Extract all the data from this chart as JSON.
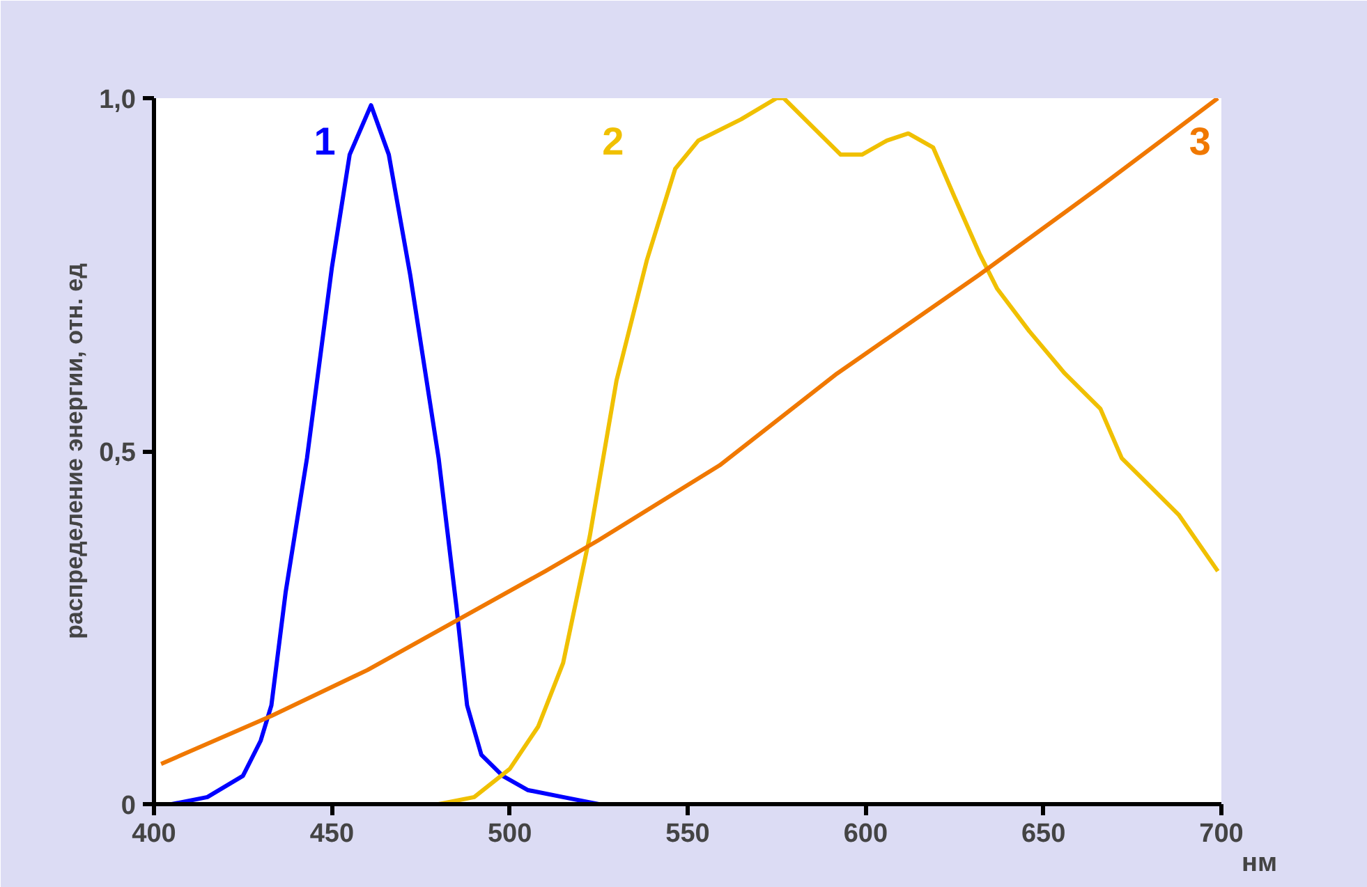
{
  "chart_data": {
    "type": "line",
    "ylabel": "распределение энергии, отн. ед",
    "xlabel": "нм",
    "xlim": [
      400,
      700
    ],
    "ylim": [
      0,
      1
    ],
    "xticks": [
      400,
      450,
      500,
      550,
      600,
      650,
      700
    ],
    "yticks": [
      {
        "value": 0,
        "label": "0"
      },
      {
        "value": 0.5,
        "label": "0,5"
      },
      {
        "value": 1,
        "label": "1,0"
      }
    ],
    "grid": false,
    "series": [
      {
        "color": "#0000ff",
        "x": [
          405,
          415,
          425,
          430,
          433,
          437,
          443,
          450,
          455,
          461,
          466,
          472,
          480,
          485,
          488,
          492,
          498,
          505,
          515,
          525
        ],
        "values": [
          0,
          0.01,
          0.04,
          0.09,
          0.14,
          0.3,
          0.49,
          0.76,
          0.92,
          0.99,
          0.92,
          0.75,
          0.49,
          0.28,
          0.14,
          0.07,
          0.04,
          0.02,
          0.01,
          0
        ]
      },
      {
        "color": "#f0c000",
        "x": [
          470,
          480,
          490,
          500,
          508,
          515,
          522.5,
          530,
          538.5,
          546.5,
          553,
          565,
          575,
          577,
          585,
          593,
          599,
          606,
          612,
          619,
          625,
          632,
          637,
          646,
          656,
          666,
          672,
          680,
          688,
          699
        ],
        "values": [
          0,
          0,
          0.01,
          0.05,
          0.11,
          0.2,
          0.38,
          0.6,
          0.77,
          0.9,
          0.94,
          0.97,
          1.0,
          1.0,
          0.96,
          0.92,
          0.92,
          0.94,
          0.95,
          0.93,
          0.86,
          0.78,
          0.73,
          0.67,
          0.61,
          0.56,
          0.49,
          0.45,
          0.41,
          0.33
        ]
      },
      {
        "color": "#f07800",
        "x": [
          402,
          433,
          460,
          485,
          510,
          525,
          559,
          592,
          632,
          666,
          699
        ],
        "values": [
          0.057,
          0.125,
          0.19,
          0.26,
          0.33,
          0.374,
          0.48,
          0.61,
          0.75,
          0.875,
          1.0
        ]
      }
    ],
    "annotations": [
      "1",
      "2",
      "3"
    ]
  }
}
